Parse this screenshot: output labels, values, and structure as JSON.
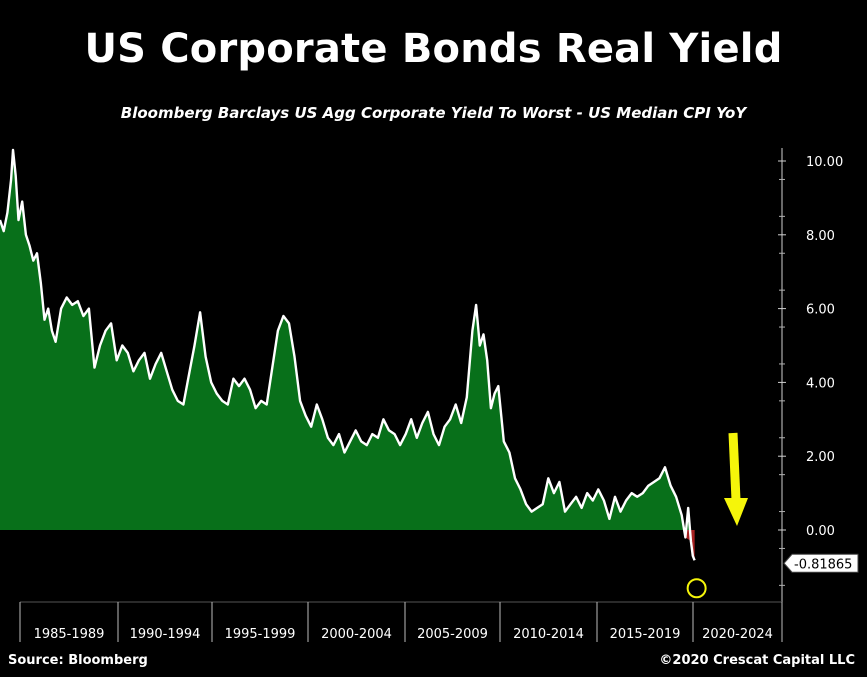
{
  "title": "US Corporate Bonds Real Yield",
  "subtitle": "Bloomberg Barclays US Agg Corporate Yield To Worst - US Median CPI YoY",
  "source": "Source: Bloomberg",
  "copyright": "©2020 Crescat Capital LLC",
  "colors": {
    "background": "#000000",
    "area_fill": "#08701a",
    "line": "#ffffff",
    "arrow": "#f5f50a",
    "circle": "#f5f50a",
    "negative": "#d12a2a"
  },
  "chart_data": {
    "type": "area",
    "title": "US Corporate Bonds Real Yield",
    "ylabel": "",
    "xlabel": "",
    "ylim": [
      -2,
      10.5
    ],
    "xlim": [
      1983.0,
      2025.0
    ],
    "yticks": [
      "10.00",
      "8.00",
      "6.00",
      "4.00",
      "2.00",
      "0.00"
    ],
    "categories": [
      "1985-1989",
      "1990-1994",
      "1995-1999",
      "2000-2004",
      "2005-2009",
      "2010-2014",
      "2015-2019",
      "2020-2024"
    ],
    "last_value_label": "-0.81865",
    "grid": false,
    "series": [
      {
        "x": [
          1983.0,
          1983.2,
          1983.4,
          1983.6,
          1983.7,
          1983.85,
          1984.0,
          1984.2,
          1984.4,
          1984.6,
          1984.8,
          1985.0,
          1985.2,
          1985.4,
          1985.6,
          1985.8,
          1986.0,
          1986.3,
          1986.6,
          1986.9,
          1987.2,
          1987.5,
          1987.8,
          1988.1,
          1988.4,
          1988.7,
          1989.0,
          1989.3,
          1989.6,
          1989.9,
          1990.2,
          1990.5,
          1990.8,
          1991.1,
          1991.4,
          1991.7,
          1992.0,
          1992.3,
          1992.6,
          1992.9,
          1993.2,
          1993.5,
          1993.8,
          1994.1,
          1994.4,
          1994.7,
          1995.0,
          1995.3,
          1995.6,
          1995.9,
          1996.2,
          1996.5,
          1996.8,
          1997.1,
          1997.4,
          1997.7,
          1998.0,
          1998.3,
          1998.6,
          1998.9,
          1999.2,
          1999.5,
          1999.8,
          2000.1,
          2000.4,
          2000.7,
          2001.0,
          2001.3,
          2001.6,
          2001.9,
          2002.2,
          2002.5,
          2002.8,
          2003.1,
          2003.4,
          2003.7,
          2004.0,
          2004.3,
          2004.6,
          2004.9,
          2005.2,
          2005.5,
          2005.8,
          2006.1,
          2006.4,
          2006.7,
          2007.0,
          2007.3,
          2007.6,
          2007.9,
          2008.2,
          2008.5,
          2008.7,
          2008.9,
          2009.1,
          2009.3,
          2009.5,
          2009.7,
          2009.9,
          2010.2,
          2010.5,
          2010.8,
          2011.1,
          2011.4,
          2011.7,
          2012.0,
          2012.3,
          2012.6,
          2012.9,
          2013.2,
          2013.5,
          2013.8,
          2014.1,
          2014.4,
          2014.7,
          2015.0,
          2015.3,
          2015.6,
          2015.9,
          2016.2,
          2016.5,
          2016.8,
          2017.1,
          2017.4,
          2017.7,
          2018.0,
          2018.3,
          2018.6,
          2018.9,
          2019.2,
          2019.5,
          2019.8,
          2020.0,
          2020.15,
          2020.3,
          2020.4,
          2020.5
        ],
        "values": [
          8.4,
          8.1,
          8.6,
          9.5,
          10.3,
          9.6,
          8.4,
          8.9,
          8.0,
          7.7,
          7.3,
          7.5,
          6.7,
          5.7,
          6.0,
          5.4,
          5.1,
          6.0,
          6.3,
          6.1,
          6.2,
          5.8,
          6.0,
          4.4,
          5.0,
          5.4,
          5.6,
          4.6,
          5.0,
          4.8,
          4.3,
          4.6,
          4.8,
          4.1,
          4.5,
          4.8,
          4.3,
          3.8,
          3.5,
          3.4,
          4.2,
          5.0,
          5.9,
          4.7,
          4.0,
          3.7,
          3.5,
          3.4,
          4.1,
          3.9,
          4.1,
          3.8,
          3.3,
          3.5,
          3.4,
          4.4,
          5.4,
          5.8,
          5.6,
          4.7,
          3.5,
          3.1,
          2.8,
          3.4,
          3.0,
          2.5,
          2.3,
          2.6,
          2.1,
          2.4,
          2.7,
          2.4,
          2.3,
          2.6,
          2.5,
          3.0,
          2.7,
          2.6,
          2.3,
          2.6,
          3.0,
          2.5,
          2.9,
          3.2,
          2.6,
          2.3,
          2.8,
          3.0,
          3.4,
          2.9,
          3.6,
          5.4,
          6.1,
          5.0,
          5.3,
          4.6,
          3.3,
          3.7,
          3.9,
          2.4,
          2.1,
          1.4,
          1.1,
          0.7,
          0.5,
          0.6,
          0.7,
          1.4,
          1.0,
          1.3,
          0.5,
          0.7,
          0.9,
          0.6,
          1.0,
          0.8,
          1.1,
          0.8,
          0.3,
          0.9,
          0.5,
          0.8,
          1.0,
          0.9,
          1.0,
          1.2,
          1.3,
          1.4,
          1.7,
          1.2,
          0.9,
          0.4,
          -0.2,
          0.6,
          -0.3,
          -0.7,
          -0.82
        ]
      }
    ]
  }
}
